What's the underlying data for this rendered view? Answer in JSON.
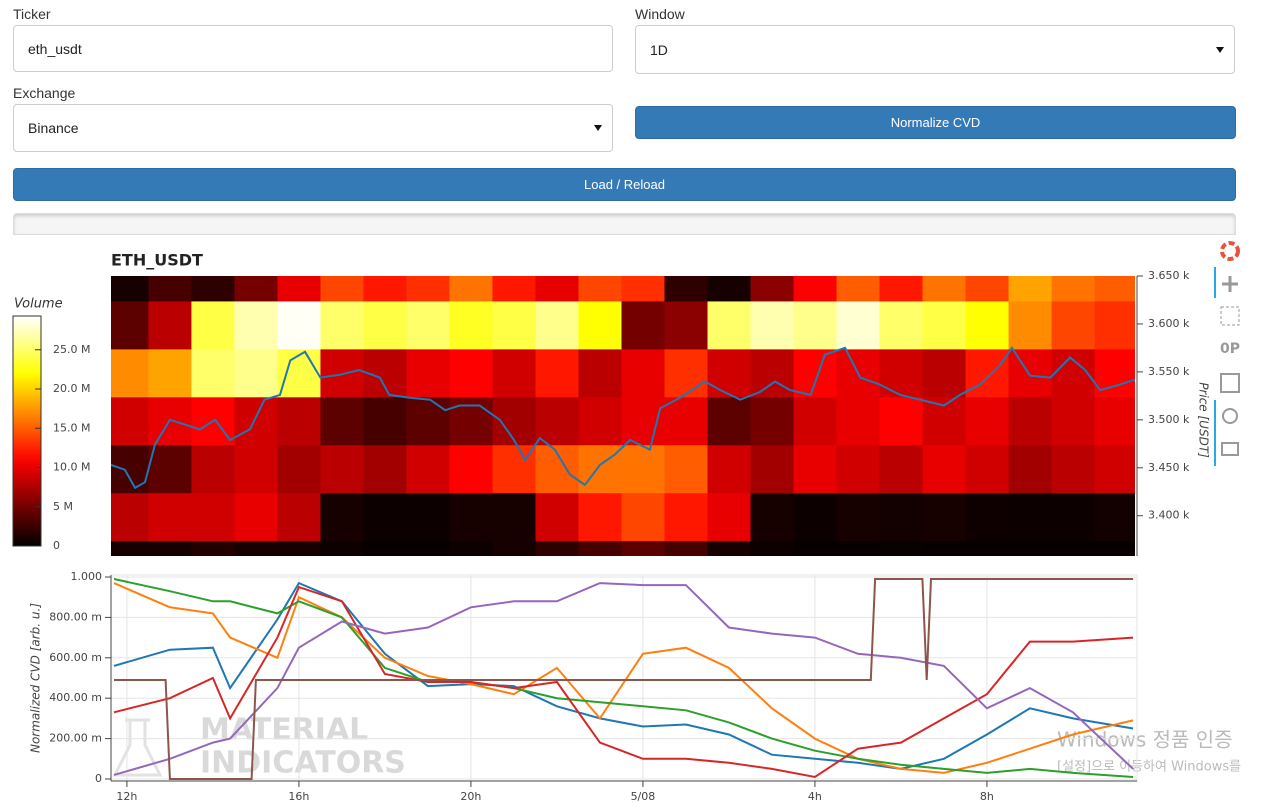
{
  "form": {
    "ticker": {
      "label": "Ticker",
      "value": "eth_usdt"
    },
    "window": {
      "label": "Window",
      "value": "1D"
    },
    "exchange": {
      "label": "Exchange",
      "value": "Binance"
    },
    "normalize_button": "Normalize CVD",
    "load_button": "Load / Reload"
  },
  "watermark": [
    "MATERIAL",
    "INDICATORS"
  ],
  "os_notice": {
    "title": "Windows 정품 인증",
    "subtitle": "[설정]으로 이동하여 Windows를"
  },
  "chart_data": [
    {
      "type": "heatmap",
      "title": "ETH_USDT",
      "y_label": "Price [USDT]",
      "colorbar_title": "Volume",
      "colormap": "hot",
      "xlim": [
        11.63,
        35.44
      ],
      "ylim": [
        3358,
        3650
      ],
      "yticks": [
        {
          "value": 3650,
          "label": "3.650 k"
        },
        {
          "value": 3600,
          "label": "3.600 k"
        },
        {
          "value": 3550,
          "label": "3.550 k"
        },
        {
          "value": 3500,
          "label": "3.500 k"
        },
        {
          "value": 3450,
          "label": "3.450 k"
        },
        {
          "value": 3400,
          "label": "3.400 k"
        }
      ],
      "clim": [
        0,
        29300000.0
      ],
      "cticks": [
        {
          "value": 0,
          "label": "0"
        },
        {
          "value": 5000000.0,
          "label": "5 M"
        },
        {
          "value": 10000000.0,
          "label": "10.0 M"
        },
        {
          "value": 15000000.0,
          "label": "15.0 M"
        },
        {
          "value": 20000000.0,
          "label": "20.0 M"
        },
        {
          "value": 25000000.0,
          "label": "25.0 M"
        }
      ],
      "x_bins": [
        11.5,
        12.5,
        13.5,
        14.5,
        15.5,
        16.5,
        17.5,
        18.5,
        19.5,
        20.5,
        21.5,
        22.5,
        23.5,
        24.5,
        25.5,
        26.5,
        27.5,
        28.5,
        29.5,
        30.5,
        31.5,
        32.5,
        33.5,
        34.5,
        35.5
      ],
      "y_bins": [
        3324,
        3374,
        3424,
        3474,
        3524,
        3574,
        3624,
        3674
      ],
      "values": [
        [
          1000000.0,
          1000000.0,
          1500000.0,
          1000000.0,
          1000000.0,
          500000.0,
          300000.0,
          300000.0,
          500000.0,
          1000000.0,
          2000000.0,
          3000000.0,
          4000000.0,
          3000000.0,
          1000000.0,
          500000.0,
          300000.0,
          300000.0,
          400000.0,
          300000.0,
          300000.0,
          300000.0,
          300000.0,
          300000.0
        ],
        [
          8000000.0,
          9000000.0,
          9000000.0,
          10000000.0,
          8000000.0,
          1000000.0,
          500000.0,
          500000.0,
          1000000.0,
          1000000.0,
          9000000.0,
          12000000.0,
          14000000.0,
          12000000.0,
          10000000.0,
          1000000.0,
          500000.0,
          1000000.0,
          800000.0,
          1000000.0,
          600000.0,
          500000.0,
          500000.0,
          800000.0
        ],
        [
          3000000.0,
          4000000.0,
          8000000.0,
          9000000.0,
          7000000.0,
          8000000.0,
          7000000.0,
          9000000.0,
          11000000.0,
          13000000.0,
          15000000.0,
          16000000.0,
          16000000.0,
          15000000.0,
          9000000.0,
          7000000.0,
          10000000.0,
          9000000.0,
          8000000.0,
          10000000.0,
          9000000.0,
          7000000.0,
          8000000.0,
          9000000.0
        ],
        [
          9000000.0,
          10000000.0,
          11000000.0,
          9000000.0,
          8000000.0,
          4000000.0,
          3000000.0,
          4000000.0,
          5000000.0,
          7000000.0,
          8000000.0,
          9000000.0,
          10000000.0,
          10000000.0,
          4000000.0,
          5000000.0,
          9000000.0,
          10000000.0,
          11000000.0,
          9000000.0,
          10000000.0,
          8000000.0,
          9000000.0,
          10000000.0
        ],
        [
          17000000.0,
          18000000.0,
          25000000.0,
          26000000.0,
          24000000.0,
          9000000.0,
          8000000.0,
          10000000.0,
          11000000.0,
          9000000.0,
          12000000.0,
          8000000.0,
          10000000.0,
          13000000.0,
          9000000.0,
          8000000.0,
          11000000.0,
          10000000.0,
          9000000.0,
          8000000.0,
          12000000.0,
          10000000.0,
          9000000.0,
          11000000.0
        ],
        [
          4000000.0,
          8000000.0,
          24000000.0,
          27000000.0,
          29000000.0,
          25000000.0,
          24000000.0,
          25000000.0,
          23000000.0,
          24000000.0,
          26000000.0,
          22000000.0,
          5000000.0,
          6000000.0,
          25000000.0,
          27000000.0,
          26000000.0,
          28000000.0,
          25000000.0,
          24000000.0,
          22000000.0,
          17000000.0,
          14000000.0,
          13000000.0
        ],
        [
          1000000.0,
          3000000.0,
          2000000.0,
          5000000.0,
          10000000.0,
          14000000.0,
          12000000.0,
          13000000.0,
          16000000.0,
          12000000.0,
          10000000.0,
          14000000.0,
          13000000.0,
          2000000.0,
          1000000.0,
          6000000.0,
          11000000.0,
          15000000.0,
          12000000.0,
          16000000.0,
          14000000.0,
          18000000.0,
          16000000.0,
          15000000.0
        ]
      ],
      "series": [
        {
          "color": "#1f77b4",
          "x": [
            11.63,
            11.95,
            12.19,
            12.42,
            12.65,
            13.0,
            13.35,
            13.7,
            14.05,
            14.4,
            14.86,
            15.2,
            15.56,
            15.8,
            16.14,
            16.5,
            16.95,
            17.4,
            17.88,
            18.1,
            18.58,
            19.05,
            19.4,
            19.74,
            20.2,
            20.67,
            21.0,
            21.26,
            21.6,
            21.95,
            22.3,
            22.65,
            23.0,
            23.35,
            23.7,
            24.16,
            24.4,
            24.86,
            25.44,
            25.8,
            26.26,
            26.72,
            27.07,
            27.42,
            27.9,
            28.23,
            28.7,
            29.05,
            29.5,
            29.98,
            30.44,
            31.0,
            31.37,
            31.84,
            32.3,
            32.58,
            33.0,
            33.47,
            33.93,
            34.28,
            34.63,
            35.1,
            35.44
          ],
          "values": [
            3453,
            3448,
            3429,
            3435,
            3474,
            3500,
            3495,
            3490,
            3500,
            3479,
            3490,
            3521,
            3526,
            3562,
            3571,
            3544,
            3547,
            3552,
            3544,
            3526,
            3523,
            3521,
            3510,
            3515,
            3515,
            3500,
            3479,
            3458,
            3481,
            3469,
            3443,
            3432,
            3453,
            3464,
            3479,
            3469,
            3512,
            3523,
            3540,
            3531,
            3521,
            3529,
            3540,
            3531,
            3526,
            3568,
            3575,
            3544,
            3537,
            3526,
            3521,
            3515,
            3526,
            3537,
            3557,
            3575,
            3546,
            3544,
            3565,
            3552,
            3531,
            3537,
            3542
          ]
        }
      ]
    },
    {
      "type": "line",
      "y_label": "Normalized CVD [arb. u.]",
      "grid": true,
      "xlim": [
        11.63,
        35.49
      ],
      "ylim": [
        -0.01,
        1.01
      ],
      "xticks": [
        {
          "value": 12,
          "label": "12h"
        },
        {
          "value": 16,
          "label": "16h"
        },
        {
          "value": 20,
          "label": "20h"
        },
        {
          "value": 24,
          "label": "5/08"
        },
        {
          "value": 28,
          "label": "4h"
        },
        {
          "value": 32,
          "label": "8h"
        }
      ],
      "yticks": [
        0,
        {
          "value": 0.2,
          "label": "200.00 m"
        },
        {
          "value": 0.4,
          "label": "400.00 m"
        },
        {
          "value": 0.6,
          "label": "600.00 m"
        },
        {
          "value": 0.8,
          "label": "800.00 m"
        },
        {
          "value": 1,
          "label": "1.000"
        }
      ],
      "series": [
        {
          "color": "#1f77b4",
          "x": [
            11.7,
            13,
            14,
            14.4,
            15.5,
            16,
            17,
            18,
            19,
            20,
            21,
            22,
            23,
            24,
            25,
            26,
            27,
            28,
            29,
            30,
            31,
            32,
            33,
            34,
            35.4
          ],
          "values": [
            0.56,
            0.64,
            0.65,
            0.45,
            0.79,
            0.97,
            0.88,
            0.62,
            0.46,
            0.47,
            0.46,
            0.36,
            0.3,
            0.26,
            0.27,
            0.22,
            0.12,
            0.1,
            0.08,
            0.05,
            0.1,
            0.22,
            0.35,
            0.3,
            0.25
          ]
        },
        {
          "color": "#ff7f0e",
          "x": [
            11.7,
            13,
            14,
            14.4,
            15.5,
            16,
            17,
            18,
            19,
            20,
            21,
            22,
            23,
            24,
            25,
            26,
            27,
            28,
            29,
            30,
            31,
            32,
            33,
            34,
            35.4
          ],
          "values": [
            0.97,
            0.85,
            0.82,
            0.7,
            0.6,
            0.9,
            0.8,
            0.6,
            0.51,
            0.47,
            0.42,
            0.55,
            0.3,
            0.62,
            0.65,
            0.55,
            0.35,
            0.2,
            0.1,
            0.05,
            0.03,
            0.08,
            0.15,
            0.22,
            0.29
          ]
        },
        {
          "color": "#2ca02c",
          "x": [
            11.7,
            13,
            14,
            14.4,
            15.5,
            16,
            17,
            18,
            19,
            20,
            21,
            22,
            23,
            24,
            25,
            26,
            27,
            28,
            29,
            30,
            31,
            32,
            33,
            34,
            35.4
          ],
          "values": [
            0.99,
            0.93,
            0.88,
            0.88,
            0.82,
            0.88,
            0.8,
            0.55,
            0.48,
            0.48,
            0.45,
            0.4,
            0.38,
            0.36,
            0.34,
            0.28,
            0.2,
            0.14,
            0.1,
            0.07,
            0.05,
            0.03,
            0.05,
            0.03,
            0.01
          ]
        },
        {
          "color": "#d62728",
          "x": [
            11.7,
            13,
            14,
            14.4,
            15.5,
            16,
            17,
            18,
            19,
            20,
            21,
            22,
            23,
            24,
            25,
            26,
            27,
            28,
            29,
            30,
            31,
            32,
            33,
            34,
            35.4
          ],
          "values": [
            0.33,
            0.4,
            0.5,
            0.3,
            0.7,
            0.95,
            0.88,
            0.52,
            0.48,
            0.48,
            0.45,
            0.48,
            0.18,
            0.1,
            0.1,
            0.08,
            0.05,
            0.01,
            0.15,
            0.18,
            0.3,
            0.42,
            0.68,
            0.68,
            0.7
          ]
        },
        {
          "color": "#9467bd",
          "x": [
            11.7,
            13,
            14,
            14.4,
            15.5,
            16,
            17,
            18,
            19,
            20,
            21,
            22,
            23,
            24,
            25,
            26,
            27,
            28,
            29,
            30,
            31,
            32,
            33,
            34,
            35.4
          ],
          "values": [
            0.02,
            0.1,
            0.18,
            0.2,
            0.45,
            0.65,
            0.78,
            0.72,
            0.75,
            0.85,
            0.88,
            0.88,
            0.97,
            0.96,
            0.96,
            0.75,
            0.72,
            0.7,
            0.62,
            0.6,
            0.56,
            0.35,
            0.45,
            0.33,
            0.05
          ]
        },
        {
          "color": "#8c564b",
          "x": [
            11.7,
            12.9,
            13.0,
            14.9,
            15.0,
            29.3,
            29.4,
            30.5,
            30.6,
            30.7,
            35.4
          ],
          "values": [
            0.49,
            0.49,
            0,
            0,
            0.49,
            0.49,
            0.99,
            0.99,
            0.49,
            0.99,
            0.99
          ]
        }
      ]
    }
  ]
}
